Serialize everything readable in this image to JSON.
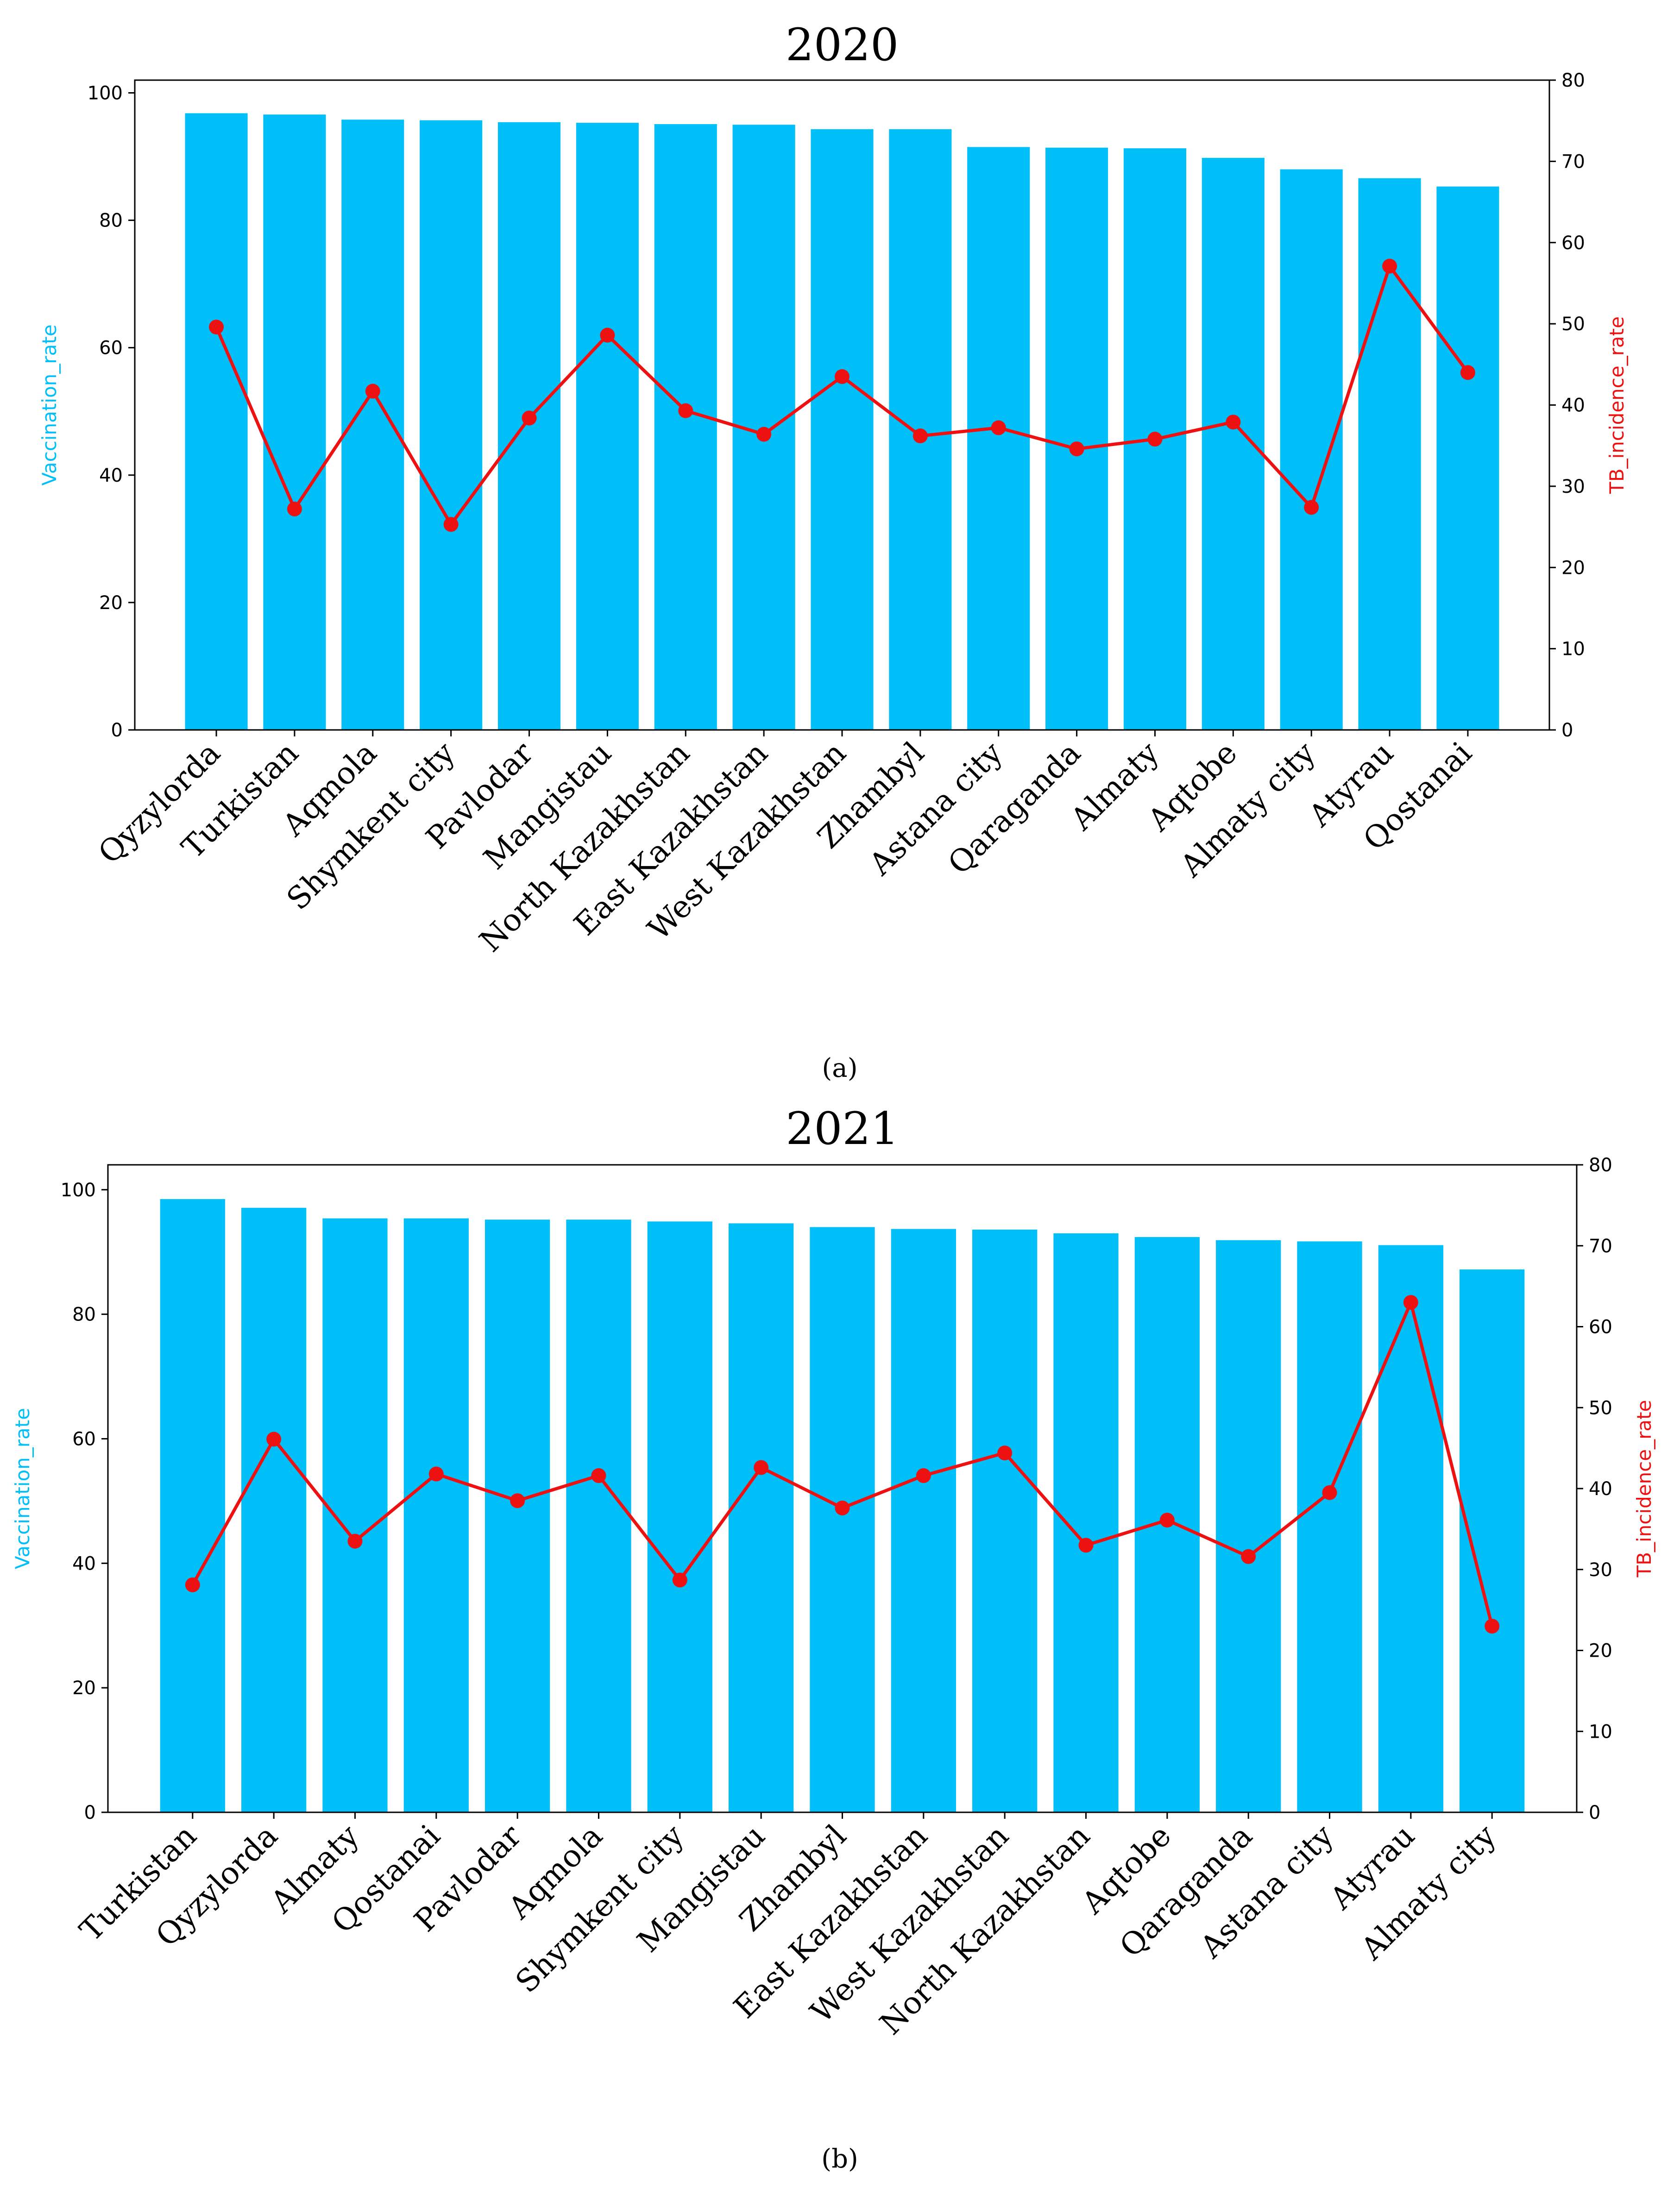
{
  "colors": {
    "bar": "#00BFF9",
    "line": "#EE1111",
    "left_axis_label": "#00BFF9",
    "right_axis_label": "#EE1111",
    "axis": "#000000"
  },
  "chart_data": [
    {
      "type": "bar",
      "title": "2020",
      "caption": "(a)",
      "ylabel": "Vaccination_rate",
      "ylabel_right": "TB_incidence_rate",
      "ylim": [
        0,
        102
      ],
      "ylim_right": [
        0,
        80
      ],
      "yticks": [
        0,
        20,
        40,
        60,
        80,
        100
      ],
      "yticks_right": [
        0,
        10,
        20,
        30,
        40,
        50,
        60,
        70,
        80
      ],
      "categories": [
        "Qyzylorda",
        "Turkistan",
        "Aqmola",
        "Shymkent city",
        "Pavlodar",
        "Mangistau",
        "North Kazakhstan",
        "East Kazakhstan",
        "West Kazakhstan",
        "Zhambyl",
        "Astana city",
        "Qaraganda",
        "Almaty",
        "Aqtobe",
        "Almaty city",
        "Atyrau",
        "Qostanai"
      ],
      "series": [
        {
          "name": "Vaccination_rate",
          "kind": "bar",
          "axis": "left",
          "values": [
            96.8,
            96.6,
            95.8,
            95.7,
            95.4,
            95.3,
            95.1,
            95.0,
            94.3,
            94.3,
            91.5,
            91.4,
            91.3,
            89.8,
            88.0,
            86.6,
            85.3
          ]
        },
        {
          "name": "TB_incidence_rate",
          "kind": "line",
          "axis": "right",
          "values": [
            49.6,
            27.2,
            41.7,
            25.3,
            38.4,
            48.6,
            39.3,
            36.4,
            43.5,
            36.2,
            37.2,
            34.6,
            35.8,
            37.9,
            27.4,
            57.1,
            44.0
          ]
        }
      ]
    },
    {
      "type": "bar",
      "title": "2021",
      "caption": "(b)",
      "ylabel": "Vaccination_rate",
      "ylabel_right": "TB_incidence_rate",
      "ylim": [
        0,
        104
      ],
      "ylim_right": [
        0,
        80
      ],
      "yticks": [
        0,
        20,
        40,
        60,
        80,
        100
      ],
      "yticks_right": [
        0,
        10,
        20,
        30,
        40,
        50,
        60,
        70,
        80
      ],
      "categories": [
        "Turkistan",
        "Qyzylorda",
        "Almaty",
        "Qostanai",
        "Pavlodar",
        "Aqmola",
        "Shymkent city",
        "Mangistau",
        "Zhambyl",
        "East Kazakhstan",
        "West Kazakhstan",
        "North Kazakhstan",
        "Aqtobe",
        "Qaraganda",
        "Astana city",
        "Atyrau",
        "Almaty city"
      ],
      "series": [
        {
          "name": "Vaccination_rate",
          "kind": "bar",
          "axis": "left",
          "values": [
            98.5,
            97.1,
            95.4,
            95.4,
            95.2,
            95.2,
            94.9,
            94.6,
            94.0,
            93.7,
            93.6,
            93.0,
            92.4,
            91.9,
            91.7,
            91.1,
            87.2
          ]
        },
        {
          "name": "TB_incidence_rate",
          "kind": "line",
          "axis": "right",
          "values": [
            28.1,
            46.1,
            33.5,
            41.8,
            38.5,
            41.6,
            28.7,
            42.6,
            37.6,
            41.6,
            44.4,
            33.0,
            36.1,
            31.6,
            39.5,
            63.0,
            23.0
          ]
        }
      ]
    }
  ]
}
